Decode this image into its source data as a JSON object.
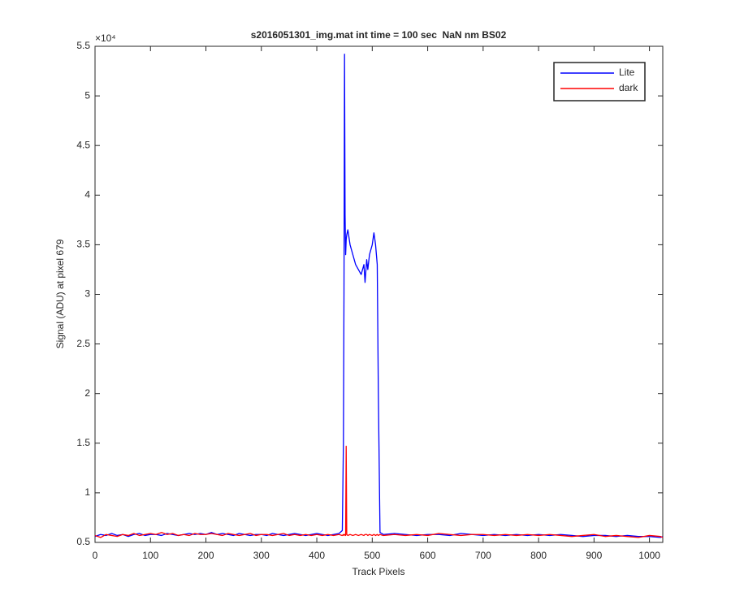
{
  "chart_data": {
    "type": "line",
    "title": "s2016051301_img.mat int time = 100 sec  NaN nm BS02",
    "xlabel": "Track Pixels",
    "ylabel": "Signal (ADU) at pixel 679",
    "y_exponent": "×10⁴",
    "x": [
      0,
      10,
      20,
      30,
      40,
      50,
      60,
      70,
      80,
      90,
      100,
      110,
      120,
      130,
      140,
      150,
      160,
      170,
      180,
      190,
      200,
      210,
      220,
      230,
      240,
      250,
      260,
      270,
      280,
      290,
      300,
      310,
      320,
      330,
      340,
      350,
      360,
      370,
      380,
      390,
      400,
      410,
      420,
      430,
      440,
      446,
      448,
      449,
      450,
      451,
      452,
      453,
      454,
      456,
      460,
      465,
      470,
      475,
      480,
      485,
      487,
      490,
      492,
      495,
      500,
      503,
      506,
      509,
      511,
      514,
      520,
      540,
      560,
      580,
      600,
      620,
      640,
      660,
      680,
      700,
      720,
      740,
      760,
      780,
      800,
      820,
      840,
      860,
      880,
      900,
      920,
      940,
      960,
      980,
      1000,
      1020,
      1024
    ],
    "series": [
      {
        "name": "Lite",
        "color": "#0000ff",
        "values": [
          0.56,
          0.58,
          0.57,
          0.59,
          0.57,
          0.58,
          0.56,
          0.58,
          0.59,
          0.57,
          0.58,
          0.58,
          0.57,
          0.59,
          0.58,
          0.57,
          0.58,
          0.59,
          0.58,
          0.59,
          0.58,
          0.6,
          0.58,
          0.59,
          0.58,
          0.57,
          0.59,
          0.58,
          0.57,
          0.58,
          0.58,
          0.57,
          0.59,
          0.58,
          0.57,
          0.58,
          0.59,
          0.58,
          0.57,
          0.58,
          0.59,
          0.58,
          0.57,
          0.58,
          0.59,
          0.62,
          1.5,
          3.0,
          5.42,
          3.8,
          3.4,
          3.55,
          3.6,
          3.65,
          3.5,
          3.4,
          3.3,
          3.25,
          3.2,
          3.3,
          3.12,
          3.35,
          3.25,
          3.4,
          3.5,
          3.62,
          3.5,
          3.3,
          2.0,
          0.6,
          0.58,
          0.59,
          0.58,
          0.57,
          0.58,
          0.58,
          0.57,
          0.59,
          0.58,
          0.57,
          0.58,
          0.57,
          0.58,
          0.57,
          0.58,
          0.57,
          0.58,
          0.57,
          0.56,
          0.57,
          0.57,
          0.56,
          0.57,
          0.56,
          0.56,
          0.55,
          0.56
        ]
      },
      {
        "name": "dark",
        "color": "#ff0000",
        "values": [
          0.57,
          0.55,
          0.58,
          0.57,
          0.56,
          0.58,
          0.57,
          0.59,
          0.57,
          0.58,
          0.59,
          0.58,
          0.6,
          0.58,
          0.59,
          0.57,
          0.58,
          0.57,
          0.59,
          0.58,
          0.58,
          0.59,
          0.58,
          0.57,
          0.59,
          0.58,
          0.57,
          0.58,
          0.59,
          0.57,
          0.58,
          0.58,
          0.57,
          0.58,
          0.59,
          0.57,
          0.58,
          0.57,
          0.58,
          0.57,
          0.58,
          0.57,
          0.58,
          0.57,
          0.58,
          0.57,
          0.58,
          0.57,
          0.58,
          0.58,
          0.57,
          1.47,
          0.58,
          0.57,
          0.58,
          0.57,
          0.58,
          0.57,
          0.58,
          0.57,
          0.58,
          0.58,
          0.57,
          0.58,
          0.57,
          0.58,
          0.57,
          0.58,
          0.57,
          0.58,
          0.57,
          0.58,
          0.57,
          0.58,
          0.57,
          0.59,
          0.58,
          0.57,
          0.58,
          0.58,
          0.57,
          0.58,
          0.57,
          0.58,
          0.57,
          0.58,
          0.57,
          0.56,
          0.57,
          0.58,
          0.56,
          0.57,
          0.56,
          0.55,
          0.57,
          0.56,
          0.55
        ]
      }
    ],
    "xlim": [
      0,
      1024
    ],
    "xticks": [
      0,
      100,
      200,
      300,
      400,
      500,
      600,
      700,
      800,
      900,
      1000
    ],
    "ylim": [
      0.5,
      5.5
    ],
    "yticks": [
      0.5,
      1,
      1.5,
      2,
      2.5,
      3,
      3.5,
      4,
      4.5,
      5,
      5.5
    ],
    "grid": false,
    "legend_loc": "northeast"
  }
}
